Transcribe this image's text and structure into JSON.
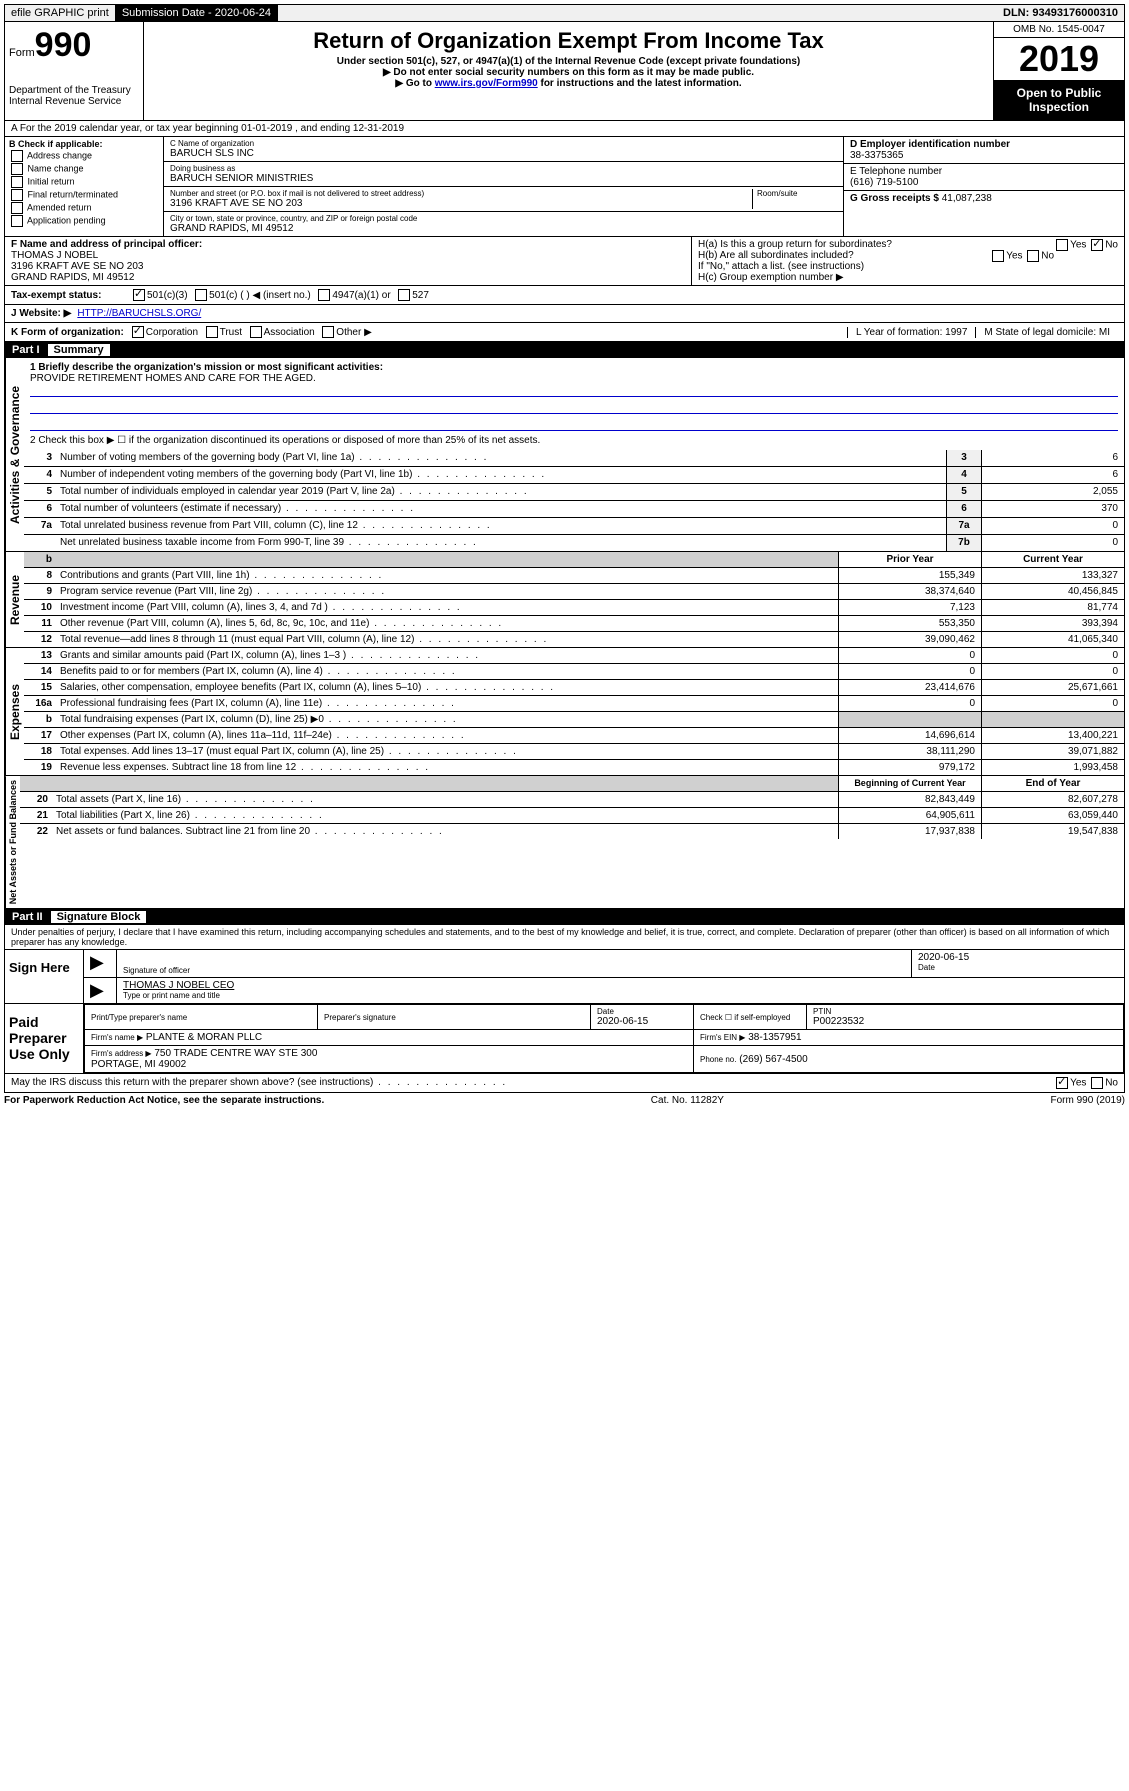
{
  "topbar": {
    "efile": "efile GRAPHIC print",
    "sub_label": "Submission Date - 2020-06-24",
    "dln": "DLN: 93493176000310"
  },
  "header": {
    "form_prefix": "Form",
    "form_number": "990",
    "dept": "Department of the Treasury\nInternal Revenue Service",
    "title": "Return of Organization Exempt From Income Tax",
    "subtitle": "Under section 501(c), 527, or 4947(a)(1) of the Internal Revenue Code (except private foundations)",
    "note1": "▶ Do not enter social security numbers on this form as it may be made public.",
    "note2_pre": "▶ Go to ",
    "note2_link": "www.irs.gov/Form990",
    "note2_post": " for instructions and the latest information.",
    "omb": "OMB No. 1545-0047",
    "year": "2019",
    "open": "Open to Public Inspection"
  },
  "line_a": "A For the 2019 calendar year, or tax year beginning 01-01-2019    , and ending 12-31-2019",
  "box_b": {
    "header": "B Check if applicable:",
    "items": [
      "Address change",
      "Name change",
      "Initial return",
      "Final return/terminated",
      "Amended return",
      "Application pending"
    ]
  },
  "box_c": {
    "name_label": "C Name of organization",
    "name": "BARUCH SLS INC",
    "dba_label": "Doing business as",
    "dba": "BARUCH SENIOR MINISTRIES",
    "addr_label": "Number and street (or P.O. box if mail is not delivered to street address)",
    "addr": "3196 KRAFT AVE SE NO 203",
    "room_label": "Room/suite",
    "city_label": "City or town, state or province, country, and ZIP or foreign postal code",
    "city": "GRAND RAPIDS, MI  49512"
  },
  "box_d": {
    "ein_label": "D Employer identification number",
    "ein": "38-3375365",
    "phone_label": "E Telephone number",
    "phone": "(616) 719-5100",
    "gross_label": "G Gross receipts $",
    "gross": "41,087,238"
  },
  "box_f": {
    "label": "F  Name and address of principal officer:",
    "name": "THOMAS J NOBEL",
    "addr1": "3196 KRAFT AVE SE NO 203",
    "addr2": "GRAND RAPIDS, MI  49512"
  },
  "box_h": {
    "a": "H(a)  Is this a group return for subordinates?",
    "b": "H(b)  Are all subordinates included?",
    "note": "If \"No,\" attach a list. (see instructions)",
    "c": "H(c)  Group exemption number ▶"
  },
  "line_i": {
    "label": "Tax-exempt status:",
    "opts": [
      "501(c)(3)",
      "501(c) (   ) ◀ (insert no.)",
      "4947(a)(1) or",
      "527"
    ]
  },
  "line_j": {
    "label": "J Website: ▶",
    "val": "HTTP://BARUCHSLS.ORG/"
  },
  "line_k": {
    "label": "K Form of organization:",
    "opts": [
      "Corporation",
      "Trust",
      "Association",
      "Other ▶"
    ],
    "l": "L Year of formation: 1997",
    "m": "M State of legal domicile: MI"
  },
  "part1": {
    "header": "Part I",
    "title": "Summary",
    "line1_label": "1  Briefly describe the organization's mission or most significant activities:",
    "line1_val": "PROVIDE RETIREMENT HOMES AND CARE FOR THE AGED.",
    "line2": "2  Check this box ▶ ☐  if the organization discontinued its operations or disposed of more than 25% of its net assets.",
    "gov_rows": [
      {
        "n": "3",
        "t": "Number of voting members of the governing body (Part VI, line 1a)",
        "b": "3",
        "v": "6"
      },
      {
        "n": "4",
        "t": "Number of independent voting members of the governing body (Part VI, line 1b)",
        "b": "4",
        "v": "6"
      },
      {
        "n": "5",
        "t": "Total number of individuals employed in calendar year 2019 (Part V, line 2a)",
        "b": "5",
        "v": "2,055"
      },
      {
        "n": "6",
        "t": "Total number of volunteers (estimate if necessary)",
        "b": "6",
        "v": "370"
      },
      {
        "n": "7a",
        "t": "Total unrelated business revenue from Part VIII, column (C), line 12",
        "b": "7a",
        "v": "0"
      },
      {
        "n": "",
        "t": "Net unrelated business taxable income from Form 990-T, line 39",
        "b": "7b",
        "v": "0"
      }
    ],
    "col_header1": "Prior Year",
    "col_header2": "Current Year",
    "rev_rows": [
      {
        "n": "8",
        "t": "Contributions and grants (Part VIII, line 1h)",
        "v1": "155,349",
        "v2": "133,327"
      },
      {
        "n": "9",
        "t": "Program service revenue (Part VIII, line 2g)",
        "v1": "38,374,640",
        "v2": "40,456,845"
      },
      {
        "n": "10",
        "t": "Investment income (Part VIII, column (A), lines 3, 4, and 7d )",
        "v1": "7,123",
        "v2": "81,774"
      },
      {
        "n": "11",
        "t": "Other revenue (Part VIII, column (A), lines 5, 6d, 8c, 9c, 10c, and 11e)",
        "v1": "553,350",
        "v2": "393,394"
      },
      {
        "n": "12",
        "t": "Total revenue—add lines 8 through 11 (must equal Part VIII, column (A), line 12)",
        "v1": "39,090,462",
        "v2": "41,065,340"
      }
    ],
    "exp_rows": [
      {
        "n": "13",
        "t": "Grants and similar amounts paid (Part IX, column (A), lines 1–3 )",
        "v1": "0",
        "v2": "0"
      },
      {
        "n": "14",
        "t": "Benefits paid to or for members (Part IX, column (A), line 4)",
        "v1": "0",
        "v2": "0"
      },
      {
        "n": "15",
        "t": "Salaries, other compensation, employee benefits (Part IX, column (A), lines 5–10)",
        "v1": "23,414,676",
        "v2": "25,671,661"
      },
      {
        "n": "16a",
        "t": "Professional fundraising fees (Part IX, column (A), line 11e)",
        "v1": "0",
        "v2": "0"
      },
      {
        "n": "b",
        "t": "Total fundraising expenses (Part IX, column (D), line 25) ▶0",
        "v1": "",
        "v2": "",
        "shaded": true
      },
      {
        "n": "17",
        "t": "Other expenses (Part IX, column (A), lines 11a–11d, 11f–24e)",
        "v1": "14,696,614",
        "v2": "13,400,221"
      },
      {
        "n": "18",
        "t": "Total expenses. Add lines 13–17 (must equal Part IX, column (A), line 25)",
        "v1": "38,111,290",
        "v2": "39,071,882"
      },
      {
        "n": "19",
        "t": "Revenue less expenses. Subtract line 18 from line 12",
        "v1": "979,172",
        "v2": "1,993,458"
      }
    ],
    "na_header1": "Beginning of Current Year",
    "na_header2": "End of Year",
    "na_rows": [
      {
        "n": "20",
        "t": "Total assets (Part X, line 16)",
        "v1": "82,843,449",
        "v2": "82,607,278"
      },
      {
        "n": "21",
        "t": "Total liabilities (Part X, line 26)",
        "v1": "64,905,611",
        "v2": "63,059,440"
      },
      {
        "n": "22",
        "t": "Net assets or fund balances. Subtract line 21 from line 20",
        "v1": "17,937,838",
        "v2": "19,547,838"
      }
    ]
  },
  "part2": {
    "header": "Part II",
    "title": "Signature Block",
    "perjury": "Under penalties of perjury, I declare that I have examined this return, including accompanying schedules and statements, and to the best of my knowledge and belief, it is true, correct, and complete. Declaration of preparer (other than officer) is based on all information of which preparer has any knowledge.",
    "sign_here": "Sign Here",
    "sig_officer": "Signature of officer",
    "sig_date": "2020-06-15",
    "date_label": "Date",
    "officer_name": "THOMAS J NOBEL CEO",
    "type_label": "Type or print name and title",
    "paid": "Paid Preparer Use Only",
    "prep_name_label": "Print/Type preparer's name",
    "prep_sig_label": "Preparer's signature",
    "prep_date_label": "Date",
    "prep_date": "2020-06-15",
    "check_label": "Check ☐ if self-employed",
    "ptin_label": "PTIN",
    "ptin": "P00223532",
    "firm_name_label": "Firm's name   ▶",
    "firm_name": "PLANTE & MORAN PLLC",
    "firm_ein_label": "Firm's EIN ▶",
    "firm_ein": "38-1357951",
    "firm_addr_label": "Firm's address ▶",
    "firm_addr": "750 TRADE CENTRE WAY STE 300\nPORTAGE, MI  49002",
    "firm_phone_label": "Phone no.",
    "firm_phone": "(269) 567-4500",
    "discuss": "May the IRS discuss this return with the preparer shown above? (see instructions)"
  },
  "footer": {
    "paperwork": "For Paperwork Reduction Act Notice, see the separate instructions.",
    "cat": "Cat. No. 11282Y",
    "form": "Form 990 (2019)"
  },
  "labels": {
    "activities": "Activities & Governance",
    "revenue": "Revenue",
    "expenses": "Expenses",
    "netassets": "Net Assets or Fund Balances",
    "yes": "Yes",
    "no": "No"
  }
}
